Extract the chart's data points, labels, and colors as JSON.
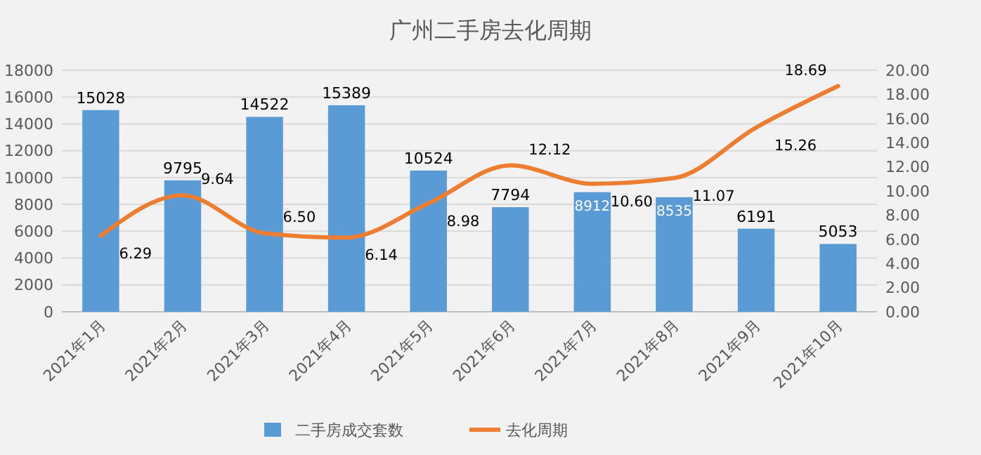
{
  "chart_data": {
    "type": "bar",
    "title": "广州二手房去化周期",
    "categories": [
      "2021年1月",
      "2021年2月",
      "2021年3月",
      "2021年4月",
      "2021年5月",
      "2021年6月",
      "2021年7月",
      "2021年8月",
      "2021年9月",
      "2021年10月"
    ],
    "series": [
      {
        "name": "二手房成交套数",
        "color": "#5b9bd5",
        "values": [
          15028,
          9795,
          14522,
          15389,
          10524,
          7794,
          8912,
          8535,
          6191,
          5053
        ]
      },
      {
        "name": "去化周期",
        "type": "line",
        "axis": "y2",
        "color": "#ed7d31",
        "values": [
          6.29,
          9.64,
          6.5,
          6.14,
          8.98,
          12.12,
          10.6,
          11.07,
          15.26,
          18.69
        ],
        "value_labels": [
          "6.29",
          "9.64",
          "6.50",
          "6.14",
          "8.98",
          "12.12",
          "10.60",
          "11.07",
          "15.26",
          "18.69"
        ]
      }
    ],
    "ylim": [
      0,
      18000
    ],
    "yticks": [
      0,
      2000,
      4000,
      6000,
      8000,
      10000,
      12000,
      14000,
      16000,
      18000
    ],
    "y2lim": [
      0,
      20
    ],
    "y2ticks": [
      {
        "value": 0,
        "label": "0.00"
      },
      {
        "value": 2,
        "label": "2.00"
      },
      {
        "value": 4,
        "label": "4.00"
      },
      {
        "value": 6,
        "label": "6.00"
      },
      {
        "value": 8,
        "label": "8.00"
      },
      {
        "value": 10,
        "label": "10.00"
      },
      {
        "value": 12,
        "label": "12.00"
      },
      {
        "value": 14,
        "label": "14.00"
      },
      {
        "value": 16,
        "label": "16.00"
      },
      {
        "value": 18,
        "label": "18.00"
      },
      {
        "value": 20,
        "label": "20.00"
      }
    ],
    "grid": "y",
    "legend": "bottom",
    "marker": "none",
    "line_style": "solid",
    "data_labels": true
  }
}
